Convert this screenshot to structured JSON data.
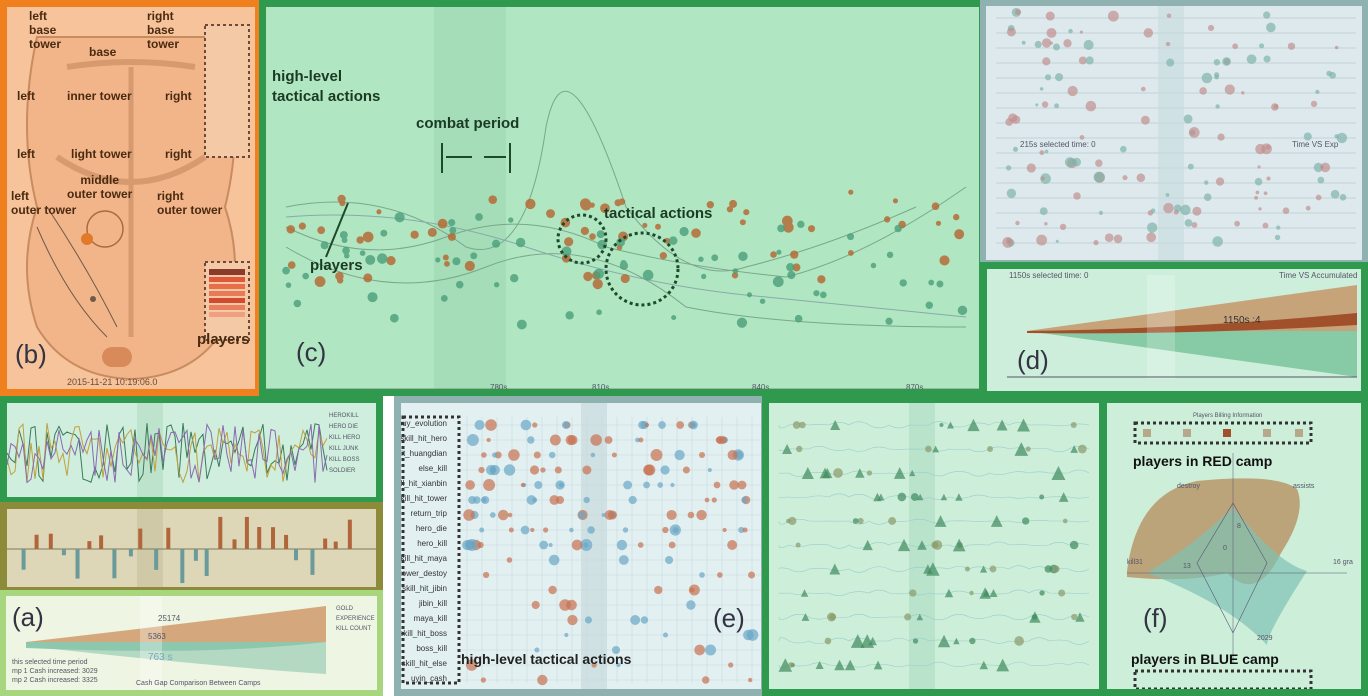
{
  "panel_b": {
    "panel_label": "(b)",
    "map_labels": {
      "left_base_tower": "left\nbase\ntower",
      "right_base_tower": "right\nbase\ntower",
      "base": "base",
      "left_inner": "left",
      "inner_tower": "inner tower",
      "right_inner": "right",
      "left_light": "left",
      "light_tower": "light tower",
      "right_light": "right",
      "middle_outer_tower": "middle\nouter tower",
      "left_outer_tower": "left\nouter tower",
      "right_outer_tower": "right\nouter tower"
    },
    "players_label": "players",
    "timestamp": "2015-11-21 10:19:06.0",
    "colors": {
      "border": "#f07f1e",
      "background": "#f6c39a",
      "text": "#4a2a10"
    }
  },
  "panel_c": {
    "panel_label": "(c)",
    "annotations": {
      "high_level": "high-level\ntactical actions",
      "combat_period": "combat period",
      "tactical_actions": "tactical actions",
      "players": "players"
    },
    "x_ticks": [
      "780s",
      "810s",
      "840s",
      "870s"
    ],
    "colors": {
      "border": "#2f9a4e",
      "background": "#b0e6c2",
      "red_marks": "#b6652f",
      "blue_marks": "#4aa07a"
    }
  },
  "panel_d_top": {
    "info": "215s selected time: 0",
    "title": "Time VS Exp"
  },
  "panel_d": {
    "panel_label": "(d)",
    "info": "1150s selected time: 0",
    "title": "Time VS Accumulated",
    "marker": "1150s :4"
  },
  "panel_a": {
    "panel_label": "(a)",
    "legend_top": [
      "HEROKILL",
      "HERO DIE",
      "KILL HERO",
      "KILL JUNK",
      "KILL BOSS",
      "SOLDIER"
    ],
    "values": {
      "top": "25174",
      "mid": "5363",
      "time": "763 s"
    },
    "legend_bottom": [
      "GOLD",
      "EXPERIENCE",
      "KILL COUNT"
    ],
    "notes": [
      "this selected time period",
      "mp 1 Cash increased: 3029",
      "mp 2 Cash increased: 3325",
      "Cash Gap Comparison Between Camps"
    ]
  },
  "panel_e": {
    "panel_label": "(e)",
    "row_labels": [
      "buy_evolution",
      "skill_hit_hero",
      "hit_huangdian",
      "else_kill",
      "kill_hit_xianbin",
      "skill_hit_tower",
      "return_trip",
      "hero_die",
      "hero_kill",
      "skill_hit_maya",
      "tower_destoy",
      "skill_hit_jibin",
      "jibin_kill",
      "maya_kill",
      "skill_hit_boss",
      "boss_kill",
      "skill_hit_else",
      "uyin_cash"
    ],
    "annotation": "high-level tactical actions"
  },
  "panel_f": {
    "panel_label": "(f)",
    "title": "Players Billing Information",
    "red_camp": "players in RED camp",
    "blue_camp": "players in BLUE camp",
    "axes": {
      "top_left": "destroy",
      "top_right": "assists",
      "left": "kill31",
      "right": "16 gra"
    },
    "values": {
      "center": "0",
      "inner": "8",
      "left": "13",
      "bottom": "2029"
    }
  }
}
